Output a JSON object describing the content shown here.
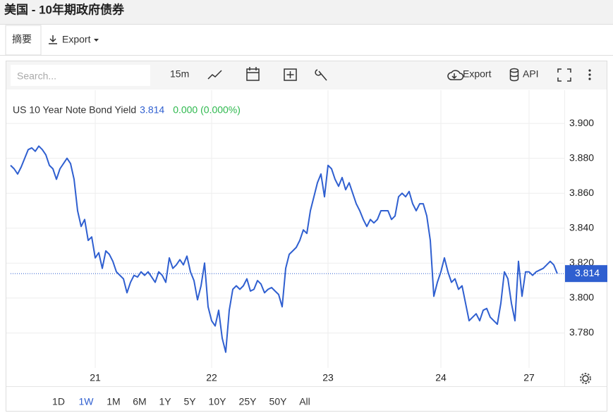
{
  "header": {
    "title": "美国 - 10年期政府债券"
  },
  "tabs": [
    "摘要",
    "Export"
  ],
  "toolbar": {
    "search_placeholder": "Search...",
    "interval": "15m",
    "export": "Export",
    "api": "API"
  },
  "ranges": {
    "options": [
      "1D",
      "1W",
      "1M",
      "6M",
      "1Y",
      "5Y",
      "10Y",
      "25Y",
      "50Y",
      "All"
    ],
    "active": 1
  },
  "chart_data": {
    "type": "line",
    "title": "US 10 Year Note Bond Yield",
    "last": 3.814,
    "change": "0.000 (0.000%)",
    "color": "#2f5fd0",
    "values": [
      3.876,
      3.874,
      3.871,
      3.875,
      3.88,
      3.885,
      3.886,
      3.884,
      3.887,
      3.885,
      3.882,
      3.876,
      3.874,
      3.868,
      3.874,
      3.877,
      3.88,
      3.877,
      3.868,
      3.85,
      3.841,
      3.845,
      3.833,
      3.835,
      3.823,
      3.826,
      3.817,
      3.827,
      3.825,
      3.821,
      3.815,
      3.813,
      3.811,
      3.803,
      3.809,
      3.813,
      3.812,
      3.815,
      3.813,
      3.815,
      3.812,
      3.809,
      3.815,
      3.813,
      3.809,
      3.823,
      3.817,
      3.819,
      3.822,
      3.819,
      3.824,
      3.815,
      3.81,
      3.799,
      3.807,
      3.82,
      3.795,
      3.787,
      3.784,
      3.793,
      3.777,
      3.769,
      3.793,
      3.805,
      3.807,
      3.805,
      3.807,
      3.811,
      3.804,
      3.805,
      3.81,
      3.808,
      3.803,
      3.805,
      3.806,
      3.804,
      3.802,
      3.795,
      3.817,
      3.825,
      3.827,
      3.829,
      3.833,
      3.839,
      3.837,
      3.85,
      3.858,
      3.866,
      3.871,
      3.858,
      3.876,
      3.874,
      3.868,
      3.864,
      3.869,
      3.862,
      3.866,
      3.86,
      3.854,
      3.85,
      3.845,
      3.841,
      3.845,
      3.843,
      3.845,
      3.85,
      3.85,
      3.85,
      3.845,
      3.847,
      3.858,
      3.86,
      3.858,
      3.861,
      3.854,
      3.85,
      3.854,
      3.854,
      3.847,
      3.833,
      3.801,
      3.809,
      3.815,
      3.823,
      3.815,
      3.809,
      3.811,
      3.805,
      3.807,
      3.797,
      3.787,
      3.789,
      3.791,
      3.787,
      3.793,
      3.794,
      3.789,
      3.787,
      3.785,
      3.797,
      3.815,
      3.811,
      3.797,
      3.787,
      3.821,
      3.801,
      3.815,
      3.815,
      3.813,
      3.815,
      3.816,
      3.817,
      3.819,
      3.821,
      3.819,
      3.814
    ],
    "xlim": [
      0,
      157
    ],
    "xticks": [
      {
        "value": 24,
        "label": "21"
      },
      {
        "value": 57,
        "label": "22"
      },
      {
        "value": 90,
        "label": "23"
      },
      {
        "value": 122,
        "label": "24"
      },
      {
        "value": 147,
        "label": "27"
      }
    ],
    "ylim": [
      3.76,
      3.919
    ],
    "yticks": [
      {
        "value": 3.78,
        "label": "3.780"
      },
      {
        "value": 3.8,
        "label": "3.800"
      },
      {
        "value": 3.82,
        "label": "3.820"
      },
      {
        "value": 3.84,
        "label": "3.840"
      },
      {
        "value": 3.86,
        "label": "3.860"
      },
      {
        "value": 3.88,
        "label": "3.880"
      },
      {
        "value": 3.9,
        "label": "3.900"
      }
    ],
    "grid": true
  }
}
